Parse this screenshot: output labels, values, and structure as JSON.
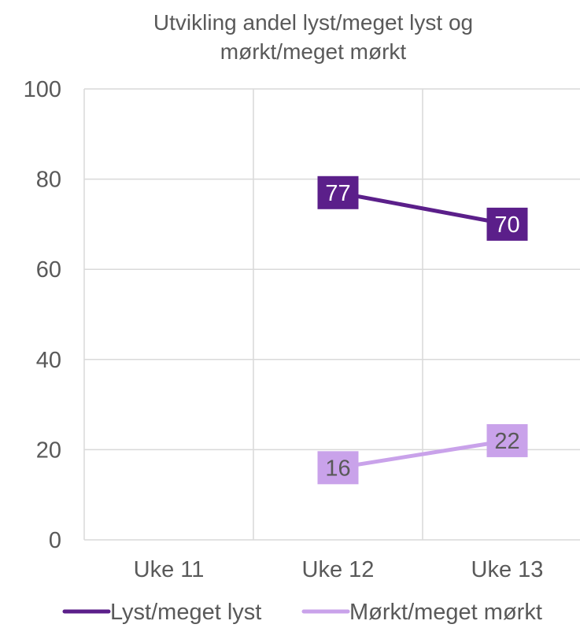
{
  "chart_data": {
    "type": "line",
    "title_lines": [
      "Utvikling andel lyst/meget lyst og",
      "mørkt/meget mørkt"
    ],
    "categories": [
      "Uke 11",
      "Uke 12",
      "Uke 13"
    ],
    "ylim": [
      0,
      100
    ],
    "yticks": [
      0,
      20,
      40,
      60,
      80,
      100
    ],
    "grid": true,
    "legend_position": "bottom",
    "series": [
      {
        "name": "Lyst/meget lyst",
        "values": [
          null,
          77,
          70
        ],
        "color": "#5B1F8A",
        "label_text_color": "#ffffff"
      },
      {
        "name": "Mørkt/meget mørkt",
        "values": [
          null,
          16,
          22
        ],
        "color": "#C9A2EA",
        "label_text_color": "#595959"
      }
    ]
  }
}
